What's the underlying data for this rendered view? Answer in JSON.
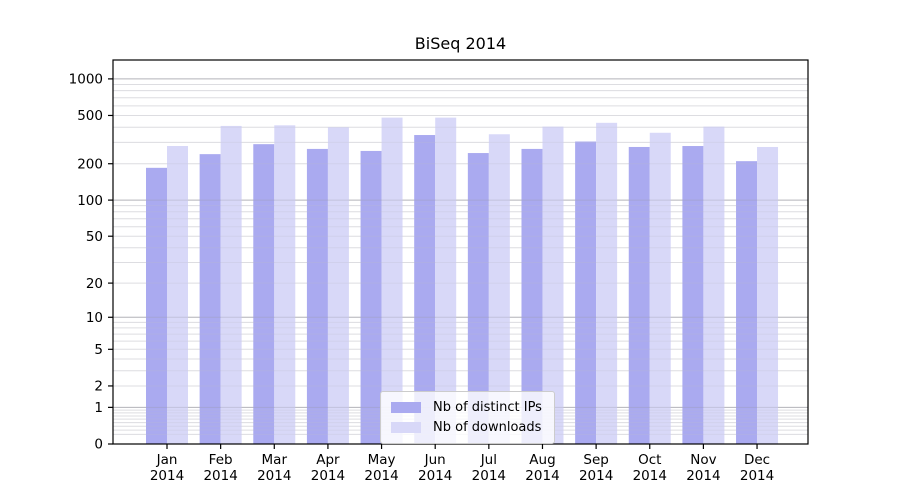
{
  "chart_data": {
    "type": "bar",
    "title": "BiSeq 2014",
    "categories": [
      "Jan 2014",
      "Feb 2014",
      "Mar 2014",
      "Apr 2014",
      "May 2014",
      "Jun 2014",
      "Jul 2014",
      "Aug 2014",
      "Sep 2014",
      "Oct 2014",
      "Nov 2014",
      "Dec 2014"
    ],
    "series": [
      {
        "name": "Nb of distinct IPs",
        "color": "#aaaaf0",
        "values": [
          185,
          240,
          290,
          265,
          255,
          345,
          245,
          265,
          305,
          275,
          280,
          210
        ]
      },
      {
        "name": "Nb of downloads",
        "color": "#d8d8f8",
        "values": [
          280,
          410,
          415,
          400,
          480,
          480,
          350,
          405,
          435,
          360,
          405,
          275
        ]
      }
    ],
    "y_scale": "log1p",
    "y_ticks": [
      0,
      1,
      2,
      5,
      10,
      20,
      50,
      100,
      200,
      500,
      1000
    ],
    "y_major_gridlines": [
      1,
      10,
      100,
      1000
    ],
    "ylim": [
      0,
      1430
    ],
    "xlabel": "",
    "ylabel": "",
    "grid": true,
    "legend_position": "lower-center-inside"
  },
  "colors": {
    "minor_grid": "#e9e9e9",
    "major_grid": "#c6c6c6",
    "spine": "#000000",
    "text": "#000000",
    "legend_border": "#cccccc"
  }
}
